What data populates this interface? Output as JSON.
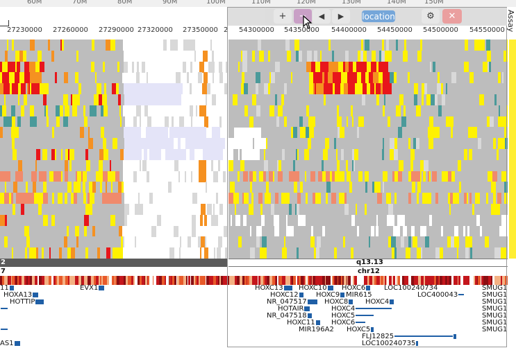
{
  "top_ruler": {
    "labels": [
      "60M",
      "70M",
      "80M",
      "90M",
      "100M",
      "110M",
      "120M",
      "130M",
      "140M",
      "150M"
    ]
  },
  "left_coords": [
    "27230000",
    "27260000",
    "27290000",
    "27320000",
    "27350000",
    "2"
  ],
  "right_coords": [
    "54300000",
    "54350000",
    "54400000",
    "54450000",
    "54500000",
    "54550000"
  ],
  "toolbar": {
    "zoom_in": "+",
    "zoom_out": "−",
    "prev": "◀",
    "next": "▶",
    "location_label": "location",
    "settings": "⚙",
    "close": "✕"
  },
  "track_label": "Assay",
  "ideogram": {
    "left_band": "2",
    "right_band": "q13.13",
    "chrom_left": "7",
    "chrom_right": "chr12"
  },
  "genes_left": [
    "11",
    "EVX1",
    "HOXA13",
    "HOTTIP",
    "AS1"
  ],
  "genes_right": [
    "HOXC13",
    "HOXC10",
    "HOXC6",
    "LOC100240734",
    "SMUG1",
    "HOXC12",
    "HOXC9",
    "MIR615",
    "LOC400043",
    "SMUG1",
    "NR_047517",
    "HOXC8",
    "HOXC4",
    "SMUG1",
    "HOTAIR",
    "HOXC4",
    "SMUG1",
    "NR_047518",
    "HOXC5",
    "SMUG1",
    "HOXC11",
    "HOXC6",
    "SMUG1",
    "MIR196A2",
    "HOXC5",
    "SMUG1",
    "FLJ12825",
    "LOC100240735"
  ],
  "colors": {
    "heat_red": "#e8161b",
    "heat_yellow": "#fff200",
    "heat_gray": "#bdbdbd",
    "heat_orange": "#f59121",
    "heat_salmon": "#f08a6c",
    "heat_teal": "#4a9a9a",
    "heat_lavender": "#e4e4f8",
    "gene_blue": "#1f5fa6"
  }
}
